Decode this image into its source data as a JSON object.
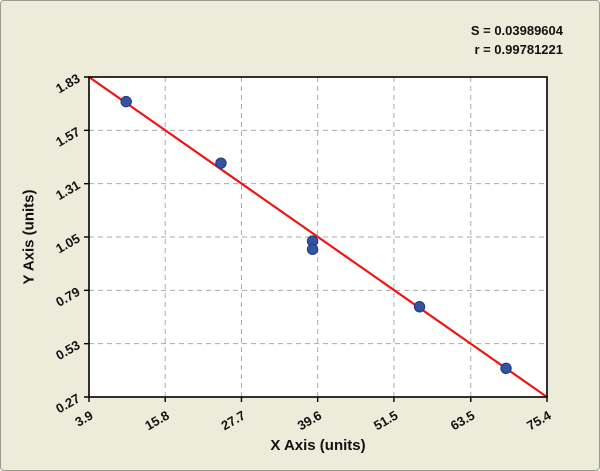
{
  "chart_data": {
    "type": "scatter",
    "title": "",
    "xlabel": "X Axis (units)",
    "ylabel": "Y Axis (units)",
    "x_ticks": [
      "3.9",
      "15.8",
      "27.7",
      "39.6",
      "51.5",
      "63.5",
      "75.4"
    ],
    "y_ticks": [
      "0.27",
      "0.53",
      "0.79",
      "1.05",
      "1.31",
      "1.57",
      "1.83"
    ],
    "xlim": [
      3.9,
      75.4
    ],
    "ylim": [
      0.27,
      1.83
    ],
    "grid": "dashed",
    "legend": "none",
    "points": [
      {
        "x": 9.7,
        "y": 1.71
      },
      {
        "x": 24.5,
        "y": 1.41
      },
      {
        "x": 38.8,
        "y": 1.03
      },
      {
        "x": 38.8,
        "y": 0.99
      },
      {
        "x": 55.5,
        "y": 0.71
      },
      {
        "x": 69.0,
        "y": 0.41
      }
    ],
    "fit_line": {
      "x1": 3.9,
      "y1": 1.83,
      "x2": 75.4,
      "y2": 0.27
    },
    "annotations": [
      "S = 0.03989604",
      "r = 0.99781221"
    ],
    "colors": {
      "background": "#edecdb",
      "plot_bg": "#ffffff",
      "grid": "#aaaaaa",
      "frame": "#000000",
      "point_fill": "#3353a3",
      "point_stroke": "#21387c",
      "line": "#f01414",
      "text": "#111111"
    }
  }
}
